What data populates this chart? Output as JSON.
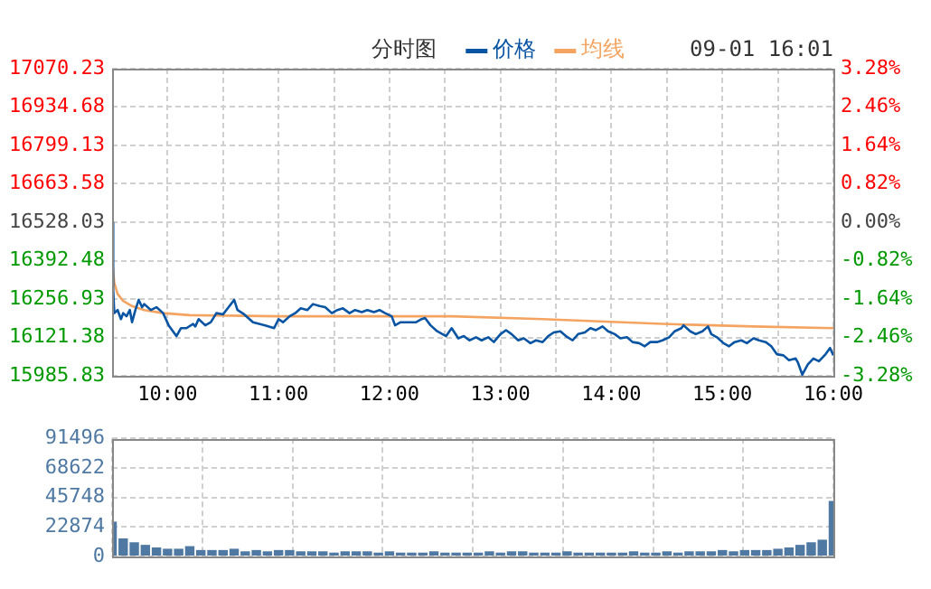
{
  "chart_data": [
    {
      "type": "line",
      "title": "分时图",
      "annotations": [
        "09-01 16:01"
      ],
      "legend": "top",
      "marker": "none",
      "grid": true,
      "xlim": [
        9.5,
        16
      ],
      "xticks": [
        {
          "value": 10,
          "label": "10:00"
        },
        {
          "value": 10.5,
          "label": null
        },
        {
          "value": 11,
          "label": "11:00"
        },
        {
          "value": 11.5,
          "label": null
        },
        {
          "value": 12,
          "label": "12:00"
        },
        {
          "value": 12.5,
          "label": null
        },
        {
          "value": 13,
          "label": "13:00"
        },
        {
          "value": 13.5,
          "label": null
        },
        {
          "value": 14,
          "label": "14:00"
        },
        {
          "value": 14.5,
          "label": null
        },
        {
          "value": 15,
          "label": "15:00"
        },
        {
          "value": 15.5,
          "label": null
        },
        {
          "value": 16,
          "label": "16:00"
        }
      ],
      "ylim": [
        15985.83,
        17070.23
      ],
      "yticks": [
        15985.83,
        16121.38,
        16256.93,
        16392.48,
        16528.03,
        16663.58,
        16799.13,
        16934.68,
        17070.23
      ],
      "y2lim": [
        -3.28,
        3.28
      ],
      "y2ticks": [
        {
          "value": -3.28,
          "label": "-3.28%"
        },
        {
          "value": -2.46,
          "label": "-2.46%"
        },
        {
          "value": -1.64,
          "label": "-1.64%"
        },
        {
          "value": -0.82,
          "label": "-0.82%"
        },
        {
          "value": 0,
          "label": "0.00%"
        },
        {
          "value": 0.82,
          "label": "0.82%"
        },
        {
          "value": 1.64,
          "label": "1.64%"
        },
        {
          "value": 2.46,
          "label": "2.46%"
        },
        {
          "value": 3.28,
          "label": "3.28%"
        }
      ],
      "series": [
        {
          "name": "价格",
          "color": "#0a55a3",
          "x": [
            9.5,
            9.51,
            9.52,
            9.55,
            9.58,
            9.6,
            9.63,
            9.66,
            9.68,
            9.71,
            9.74,
            9.77,
            9.79,
            9.85,
            9.9,
            9.96,
            10.01,
            10.08,
            10.12,
            10.17,
            10.23,
            10.25,
            10.28,
            10.34,
            10.39,
            10.44,
            10.5,
            10.55,
            10.6,
            10.63,
            10.69,
            10.77,
            10.88,
            10.96,
            11,
            11.04,
            11.1,
            11.15,
            11.2,
            11.26,
            11.31,
            11.37,
            11.42,
            11.48,
            11.53,
            11.58,
            11.64,
            11.69,
            11.75,
            11.8,
            11.86,
            11.91,
            11.96,
            12.02,
            12.05,
            12.1,
            12.18,
            12.24,
            12.29,
            12.32,
            12.37,
            12.43,
            12.51,
            12.56,
            12.62,
            12.67,
            12.72,
            12.78,
            12.83,
            12.89,
            12.94,
            13,
            13.05,
            13.1,
            13.16,
            13.21,
            13.27,
            13.32,
            13.38,
            13.43,
            13.48,
            13.54,
            13.59,
            13.65,
            13.7,
            13.76,
            13.81,
            13.86,
            13.92,
            13.97,
            14.03,
            14.08,
            14.14,
            14.19,
            14.25,
            14.3,
            14.35,
            14.41,
            14.46,
            14.52,
            14.57,
            14.63,
            14.65,
            14.71,
            14.76,
            14.82,
            14.87,
            14.9,
            14.95,
            15.01,
            15.06,
            15.11,
            15.17,
            15.22,
            15.28,
            15.33,
            15.39,
            15.44,
            15.49,
            15.55,
            15.6,
            15.66,
            15.68,
            15.72,
            15.77,
            15.82,
            15.87,
            15.93,
            15.97,
            16
          ],
          "values": [
            16526,
            16292,
            16207,
            16218,
            16186,
            16207,
            16196,
            16218,
            16175,
            16218,
            16254,
            16228,
            16239,
            16218,
            16228,
            16207,
            16164,
            16126,
            16154,
            16154,
            16169,
            16160,
            16186,
            16164,
            16175,
            16207,
            16203,
            16228,
            16254,
            16218,
            16203,
            16175,
            16164,
            16154,
            16186,
            16175,
            16196,
            16207,
            16224,
            16218,
            16239,
            16232,
            16228,
            16207,
            16218,
            16224,
            16207,
            16218,
            16211,
            16218,
            16211,
            16218,
            16207,
            16196,
            16164,
            16175,
            16175,
            16175,
            16186,
            16190,
            16164,
            16143,
            16126,
            16154,
            16118,
            16126,
            16111,
            16122,
            16111,
            16122,
            16105,
            16133,
            16147,
            16133,
            16111,
            16118,
            16101,
            16111,
            16105,
            16126,
            16139,
            16143,
            16126,
            16111,
            16133,
            16139,
            16154,
            16147,
            16160,
            16143,
            16133,
            16118,
            16122,
            16105,
            16101,
            16090,
            16105,
            16105,
            16111,
            16122,
            16143,
            16154,
            16164,
            16143,
            16133,
            16143,
            16160,
            16133,
            16122,
            16101,
            16090,
            16105,
            16111,
            16101,
            16118,
            16111,
            16105,
            16090,
            16062,
            16058,
            16041,
            16047,
            16033,
            15990,
            16026,
            16047,
            16037,
            16062,
            16084,
            16058
          ]
        },
        {
          "name": "均线",
          "color": "#f4a460",
          "x": [
            9.5,
            9.52,
            9.55,
            9.6,
            9.68,
            9.79,
            9.96,
            10.2,
            11,
            12.56,
            13.38,
            14.46,
            15.28,
            16
          ],
          "values": [
            16398,
            16313,
            16275,
            16250,
            16232,
            16218,
            16207,
            16200,
            16196,
            16196,
            16186,
            16169,
            16160,
            16154
          ]
        }
      ]
    },
    {
      "type": "bar",
      "tick_labels": "y",
      "grid": true,
      "xlim": [
        9.5,
        16
      ],
      "xticks": [
        {
          "value": 9.5,
          "label": null
        },
        {
          "value": 10.3125,
          "label": null
        },
        {
          "value": 11.125,
          "label": null
        },
        {
          "value": 11.9375,
          "label": null
        },
        {
          "value": 12.75,
          "label": null
        },
        {
          "value": 13.5625,
          "label": null
        },
        {
          "value": 14.375,
          "label": null
        },
        {
          "value": 15.1875,
          "label": null
        },
        {
          "value": 16,
          "label": null
        }
      ],
      "ylim": [
        0,
        91496
      ],
      "yticks": [
        0,
        22874,
        45748,
        68622,
        91496
      ],
      "series": [
        {
          "color": "#4f79a3",
          "x": [
            9.5,
            9.6,
            9.7,
            9.8,
            9.9,
            10,
            10.1,
            10.2,
            10.3,
            10.4,
            10.5,
            10.6,
            10.7,
            10.8,
            10.9,
            11,
            11.1,
            11.2,
            11.3,
            11.4,
            11.5,
            11.6,
            11.7,
            11.8,
            11.9,
            12,
            12.1,
            12.2,
            12.3,
            12.4,
            12.5,
            12.6,
            12.7,
            12.8,
            12.9,
            13,
            13.1,
            13.2,
            13.3,
            13.4,
            13.5,
            13.6,
            13.7,
            13.8,
            13.9,
            14,
            14.1,
            14.2,
            14.3,
            14.4,
            14.5,
            14.6,
            14.7,
            14.8,
            14.9,
            15,
            15.1,
            15.2,
            15.3,
            15.4,
            15.5,
            15.6,
            15.7,
            15.8,
            15.9,
            16
          ],
          "values": [
            27000,
            14000,
            11000,
            9000,
            7000,
            6000,
            6000,
            8000,
            5000,
            5000,
            5000,
            6000,
            4000,
            5000,
            4000,
            5000,
            5000,
            4000,
            4000,
            4000,
            3000,
            4000,
            4000,
            4000,
            3000,
            4000,
            3000,
            3000,
            3000,
            4000,
            3000,
            3000,
            3000,
            3000,
            4000,
            3000,
            4000,
            4000,
            3000,
            3000,
            3000,
            4000,
            3000,
            3000,
            3000,
            3000,
            3000,
            4000,
            3000,
            3000,
            4000,
            3000,
            4000,
            4000,
            4000,
            5000,
            4000,
            5000,
            5000,
            5000,
            6000,
            7000,
            9000,
            11000,
            13000,
            43000
          ]
        }
      ]
    }
  ]
}
